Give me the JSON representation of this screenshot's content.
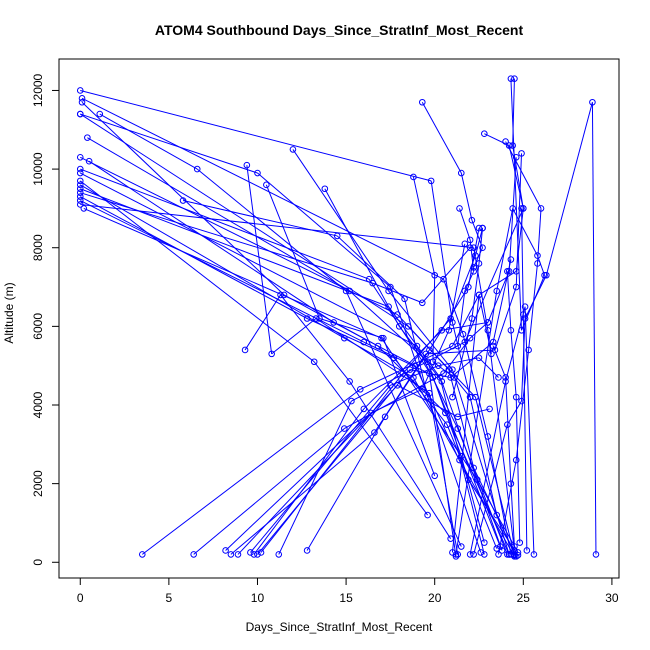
{
  "chart_data": {
    "type": "line",
    "title": "ATOM4 Southbound Days_Since_StratInf_Most_Recent",
    "xlabel": "Days_Since_StratInf_Most_Recent",
    "ylabel": "Altitude (m)",
    "xlim": [
      -1.2,
      30.4
    ],
    "ylim": [
      -400,
      12800
    ],
    "xticks": [
      "0",
      "5",
      "10",
      "15",
      "20",
      "25",
      "30"
    ],
    "yticks": [
      "0",
      "2000",
      "4000",
      "6000",
      "8000",
      "10000",
      "12000"
    ],
    "series_color": "#0000ff",
    "markers": "open-circle",
    "grid": false,
    "legend": "none",
    "series": [
      {
        "x": [
          0.0,
          19.8,
          21.0,
          22.0,
          23.5,
          24.5
        ],
        "y": [
          12000,
          9700,
          6100,
          4200,
          1200,
          200
        ]
      },
      {
        "x": [
          0.1,
          20.5,
          21.6,
          23.0,
          24.3
        ],
        "y": [
          11800,
          7200,
          5800,
          3200,
          200
        ]
      },
      {
        "x": [
          0.0,
          18.5,
          22.3,
          24.5
        ],
        "y": [
          11400,
          6000,
          4200,
          180
        ]
      },
      {
        "x": [
          0.4,
          15.2,
          19.6,
          21.5,
          22.8
        ],
        "y": [
          10800,
          6900,
          5100,
          2700,
          500
        ]
      },
      {
        "x": [
          0.0,
          17.9,
          20.8,
          22.2,
          24.6
        ],
        "y": [
          10300,
          6300,
          4900,
          2400,
          150
        ]
      },
      {
        "x": [
          0.0,
          16.3,
          19.9,
          23.7
        ],
        "y": [
          10000,
          7200,
          4700,
          400
        ]
      },
      {
        "x": [
          0.0,
          19.0,
          21.3,
          24.1
        ],
        "y": [
          9900,
          5500,
          3400,
          200
        ]
      },
      {
        "x": [
          0.0,
          14.9,
          18.8,
          21.4,
          24.5
        ],
        "y": [
          9600,
          5700,
          4700,
          2600,
          150
        ]
      },
      {
        "x": [
          0.0,
          17.4,
          20.3,
          22.8
        ],
        "y": [
          9500,
          6500,
          4700,
          200
        ]
      },
      {
        "x": [
          0.0,
          12.8,
          17.7,
          20.7,
          23.5
        ],
        "y": [
          9300,
          6200,
          5200,
          3500,
          350
        ]
      },
      {
        "x": [
          0.0,
          16.0,
          19.7,
          21.2
        ],
        "y": [
          9200,
          5600,
          4800,
          150
        ]
      },
      {
        "x": [
          0.2,
          17.0,
          22.4,
          24.7
        ],
        "y": [
          9000,
          5700,
          2100,
          250
        ]
      },
      {
        "x": [
          0.0,
          22.2,
          23.0,
          24.5
        ],
        "y": [
          9100,
          8000,
          5900,
          300
        ]
      },
      {
        "x": [
          0.1,
          11.5,
          16.8,
          20.6,
          24.2
        ],
        "y": [
          11700,
          6800,
          5500,
          3800,
          200
        ]
      },
      {
        "x": [
          0.5,
          14.3,
          18.9,
          21.9,
          24.7
        ],
        "y": [
          10200,
          6100,
          5000,
          2100,
          180
        ]
      },
      {
        "x": [
          0.0,
          13.2,
          19.6
        ],
        "y": [
          9700,
          5100,
          1200
        ]
      },
      {
        "x": [
          0.0,
          10.0,
          17.5,
          22.6
        ],
        "y": [
          11400,
          9900,
          7000,
          250
        ]
      },
      {
        "x": [
          1.1,
          6.6,
          15.0,
          21.5
        ],
        "y": [
          11400,
          10000,
          6900,
          400
        ]
      },
      {
        "x": [
          0.0,
          16.5,
          19.3,
          22.0
        ],
        "y": [
          9400,
          7100,
          6600,
          8000
        ]
      },
      {
        "x": [
          5.8,
          14.5,
          18.3,
          19.6
        ],
        "y": [
          9200,
          8300,
          6700,
          4200
        ]
      },
      {
        "x": [
          12.0,
          17.4,
          21.0,
          24.2
        ],
        "y": [
          10500,
          6900,
          4900,
          200
        ]
      },
      {
        "x": [
          13.8,
          18.0,
          20.4,
          23.8
        ],
        "y": [
          9500,
          6000,
          4600,
          300
        ]
      },
      {
        "x": [
          9.4,
          10.8,
          13.3,
          19.7,
          21.3
        ],
        "y": [
          10100,
          5300,
          6200,
          4300,
          200
        ]
      },
      {
        "x": [
          10.5,
          13.5,
          17.1,
          20.0
        ],
        "y": [
          9600,
          6200,
          5700,
          2200
        ]
      },
      {
        "x": [
          9.3,
          11.3,
          15.2,
          20.9
        ],
        "y": [
          5400,
          6800,
          4600,
          600
        ]
      },
      {
        "x": [
          11.2,
          15.3,
          21.7,
          25.0,
          24.2,
          22.8
        ],
        "y": [
          200,
          4100,
          5600,
          9000,
          10600,
          10900
        ]
      },
      {
        "x": [
          12.8,
          17.2,
          19.7,
          21.9,
          22.5
        ],
        "y": [
          300,
          3700,
          5400,
          7000,
          8500
        ]
      },
      {
        "x": [
          8.5,
          16.6,
          19.5,
          23.4,
          24.6,
          24.9
        ],
        "y": [
          200,
          3300,
          5300,
          5400,
          7000,
          10400
        ]
      },
      {
        "x": [
          9.8,
          16.0,
          20.4,
          23.0,
          24.2,
          24.6
        ],
        "y": [
          200,
          3900,
          5900,
          6100,
          7400,
          10300
        ]
      },
      {
        "x": [
          10.2,
          18.2,
          20.9,
          22.3,
          22.7
        ],
        "y": [
          250,
          4800,
          6200,
          7800,
          8500
        ]
      },
      {
        "x": [
          3.5,
          15.8,
          21.0,
          22.5,
          23.2
        ],
        "y": [
          200,
          4400,
          5500,
          6800,
          5300
        ]
      },
      {
        "x": [
          6.4,
          14.9,
          20.5,
          22.0,
          23.0
        ],
        "y": [
          200,
          3400,
          4800,
          5700,
          6100
        ]
      },
      {
        "x": [
          8.2,
          16.4,
          19.3,
          20.8,
          21.7
        ],
        "y": [
          300,
          3800,
          4400,
          5900,
          8100
        ]
      },
      {
        "x": [
          9.6,
          17.5,
          20.2,
          22.5,
          23.6
        ],
        "y": [
          250,
          4500,
          5000,
          5200,
          4700
        ]
      },
      {
        "x": [
          10.0,
          18.6,
          20.9,
          23.3,
          24.3
        ],
        "y": [
          200,
          4900,
          4700,
          5600,
          7700
        ]
      },
      {
        "x": [
          8.9,
          17.9,
          21.3,
          23.1
        ],
        "y": [
          200,
          4500,
          3700,
          3900
        ]
      },
      {
        "x": [
          21.2,
          23.5,
          24.4,
          25.8,
          26.2,
          24.9,
          24.3
        ],
        "y": [
          200,
          6900,
          9000,
          7800,
          7300,
          5900,
          12300
        ]
      },
      {
        "x": [
          21.0,
          22.5,
          24.6,
          25.0,
          24.4,
          24.5
        ],
        "y": [
          250,
          6800,
          7400,
          9000,
          10600,
          12300
        ]
      },
      {
        "x": [
          22.2,
          24.1,
          24.9,
          25.1,
          26.3,
          28.9,
          29.1
        ],
        "y": [
          200,
          3500,
          4100,
          6200,
          7300,
          11700,
          200
        ]
      },
      {
        "x": [
          23.6,
          24.6,
          25.3,
          25.8,
          26.0,
          24.0
        ],
        "y": [
          200,
          2600,
          5400,
          7600,
          9000,
          10700
        ]
      },
      {
        "x": [
          22.0,
          24.0,
          25.1,
          25.6
        ],
        "y": [
          200,
          4600,
          6500,
          200
        ]
      },
      {
        "x": [
          19.3,
          21.5,
          22.1,
          22.7,
          22.2
        ],
        "y": [
          11700,
          9900,
          8700,
          8000,
          7500
        ]
      },
      {
        "x": [
          18.8,
          20.0,
          19.9,
          21.1,
          22.0
        ],
        "y": [
          9800,
          7300,
          5100,
          4700,
          4200
        ]
      },
      {
        "x": [
          21.4,
          22.0,
          22.2,
          21.7,
          21.3
        ],
        "y": [
          9000,
          8200,
          7400,
          6900,
          5500
        ]
      },
      {
        "x": [
          22.7,
          22.5,
          22.1,
          21.0
        ],
        "y": [
          8500,
          7600,
          6200,
          4200
        ]
      },
      {
        "x": [
          24.1,
          24.3,
          24.6,
          24.8
        ],
        "y": [
          7400,
          5900,
          4200,
          500
        ]
      },
      {
        "x": [
          24.9,
          25.0,
          25.2
        ],
        "y": [
          9000,
          6300,
          300
        ]
      },
      {
        "x": [
          23.3,
          24.0,
          24.3,
          24.5
        ],
        "y": [
          5500,
          4700,
          2000,
          400
        ]
      }
    ]
  }
}
